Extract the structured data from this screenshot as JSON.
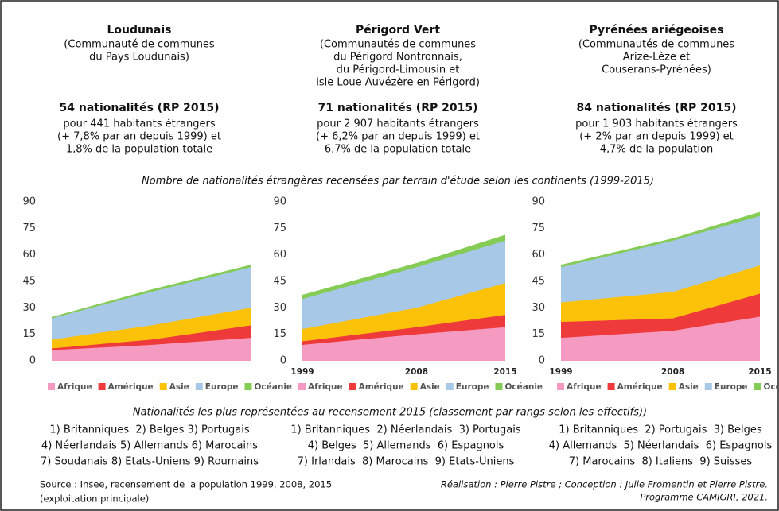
{
  "regions": [
    {
      "name": "Loudunais",
      "description": [
        "(Communauté de communes",
        "du Pays Loudunais)"
      ],
      "stats_title": "54 nationalités (RP 2015)",
      "stats": [
        "pour 441 habitants étrangers",
        "(+ 7,8% par an depuis 1999) et",
        "1,8% de la population totale"
      ],
      "ranking": [
        "1) Britanniques  2) Belges 3) Portugais",
        "4) Néerlandais 5) Allemands 6) Marocains",
        "7) Soudanais 8) Etats-Uniens 9) Roumains"
      ]
    },
    {
      "name": "Périgord Vert",
      "description": [
        "(Communautés de communes",
        "du Périgord Nontronnais,",
        "du Périgord-Limousin et",
        "Isle Loue Auvézère en Périgord)"
      ],
      "stats_title": "71 nationalités (RP 2015)",
      "stats": [
        "pour 2 907 habitants étrangers",
        "(+ 6,2% par an depuis 1999) et",
        "6,7% de la population totale"
      ],
      "ranking": [
        "1) Britanniques  2) Néerlandais  3) Portugais",
        "4) Belges  5) Allemands  6) Espagnols",
        "7) Irlandais  8) Marocains  9) Etats-Uniens"
      ]
    },
    {
      "name": "Pyrénées ariégeoises",
      "description": [
        "(Communautés de communes",
        "Arize-Lèze et",
        "Couserans-Pyrénées)"
      ],
      "stats_title": "84 nationalités (RP 2015)",
      "stats": [
        "pour 1 903 habitants étrangers",
        "(+ 2% par an depuis 1999) et",
        "4,7% de la population"
      ],
      "ranking": [
        "1) Britanniques  2) Portugais  3) Belges",
        "4) Allemands  5) Néerlandais  6) Espagnols",
        "7) Marocains  8) Italiens  9) Suisses"
      ]
    }
  ],
  "charts_title": "Nombre de nationalités étrangères recensées par terrain d'étude selon les continents (1999-2015)",
  "ranking_title": "Nationalités les plus représentées au recensement 2015 (classement par rangs selon les effectifs))",
  "source": [
    "Source : Insee, recensement de la population 1999, 2008, 2015",
    "(exploitation principale)"
  ],
  "credits": [
    "Réalisation : Pierre Pistre ; Conception : Julie Fromentin et Pierre Pistre.",
    "Programme CAMIGRI, 2021."
  ],
  "chart_data": [
    {
      "type": "area",
      "stacked": true,
      "categories": [
        null,
        null,
        null
      ],
      "ylim": [
        0,
        90
      ],
      "yticks": [
        0,
        15,
        30,
        45,
        60,
        75,
        90
      ],
      "grid": false,
      "legend": "bottom",
      "series": [
        {
          "name": "Afrique",
          "color": "#f59bc2",
          "values": [
            6,
            9,
            13
          ]
        },
        {
          "name": "Amérique",
          "color": "#ee3a3a",
          "values": [
            1,
            3,
            7
          ]
        },
        {
          "name": "Asie",
          "color": "#fcc20a",
          "values": [
            5,
            8,
            10
          ]
        },
        {
          "name": "Europe",
          "color": "#a8c8e8",
          "values": [
            12,
            19,
            23
          ]
        },
        {
          "name": "Océanie",
          "color": "#84cc55",
          "values": [
            0.5,
            1,
            1
          ]
        }
      ]
    },
    {
      "type": "area",
      "stacked": true,
      "x": [
        1999,
        2008,
        2015
      ],
      "xlim": [
        1999,
        2015
      ],
      "ylim": [
        0,
        90
      ],
      "yticks": [
        0,
        15,
        30,
        45,
        60,
        75,
        90
      ],
      "grid": false,
      "legend": "bottom",
      "series": [
        {
          "name": "Afrique",
          "color": "#f59bc2",
          "values": [
            9,
            15,
            19
          ]
        },
        {
          "name": "Amérique",
          "color": "#ee3a3a",
          "values": [
            2,
            4,
            7
          ]
        },
        {
          "name": "Asie",
          "color": "#fcc20a",
          "values": [
            7,
            11,
            18
          ]
        },
        {
          "name": "Europe",
          "color": "#a8c8e8",
          "values": [
            17,
            23,
            24
          ]
        },
        {
          "name": "Océanie",
          "color": "#84cc55",
          "values": [
            2,
            2,
            3
          ]
        }
      ]
    },
    {
      "type": "area",
      "stacked": true,
      "x": [
        1999,
        2008,
        2015
      ],
      "xlim": [
        1999,
        2015
      ],
      "ylim": [
        0,
        90
      ],
      "yticks": [
        0,
        15,
        30,
        45,
        60,
        75,
        90
      ],
      "grid": false,
      "legend": "bottom",
      "series": [
        {
          "name": "Afrique",
          "color": "#f59bc2",
          "values": [
            13,
            17,
            25
          ]
        },
        {
          "name": "Amérique",
          "color": "#ee3a3a",
          "values": [
            9,
            7,
            13
          ]
        },
        {
          "name": "Asie",
          "color": "#fcc20a",
          "values": [
            11,
            15,
            16
          ]
        },
        {
          "name": "Europe",
          "color": "#a8c8e8",
          "values": [
            20,
            29,
            28
          ]
        },
        {
          "name": "Océanie",
          "color": "#84cc55",
          "values": [
            1,
            1,
            2
          ]
        }
      ]
    }
  ]
}
